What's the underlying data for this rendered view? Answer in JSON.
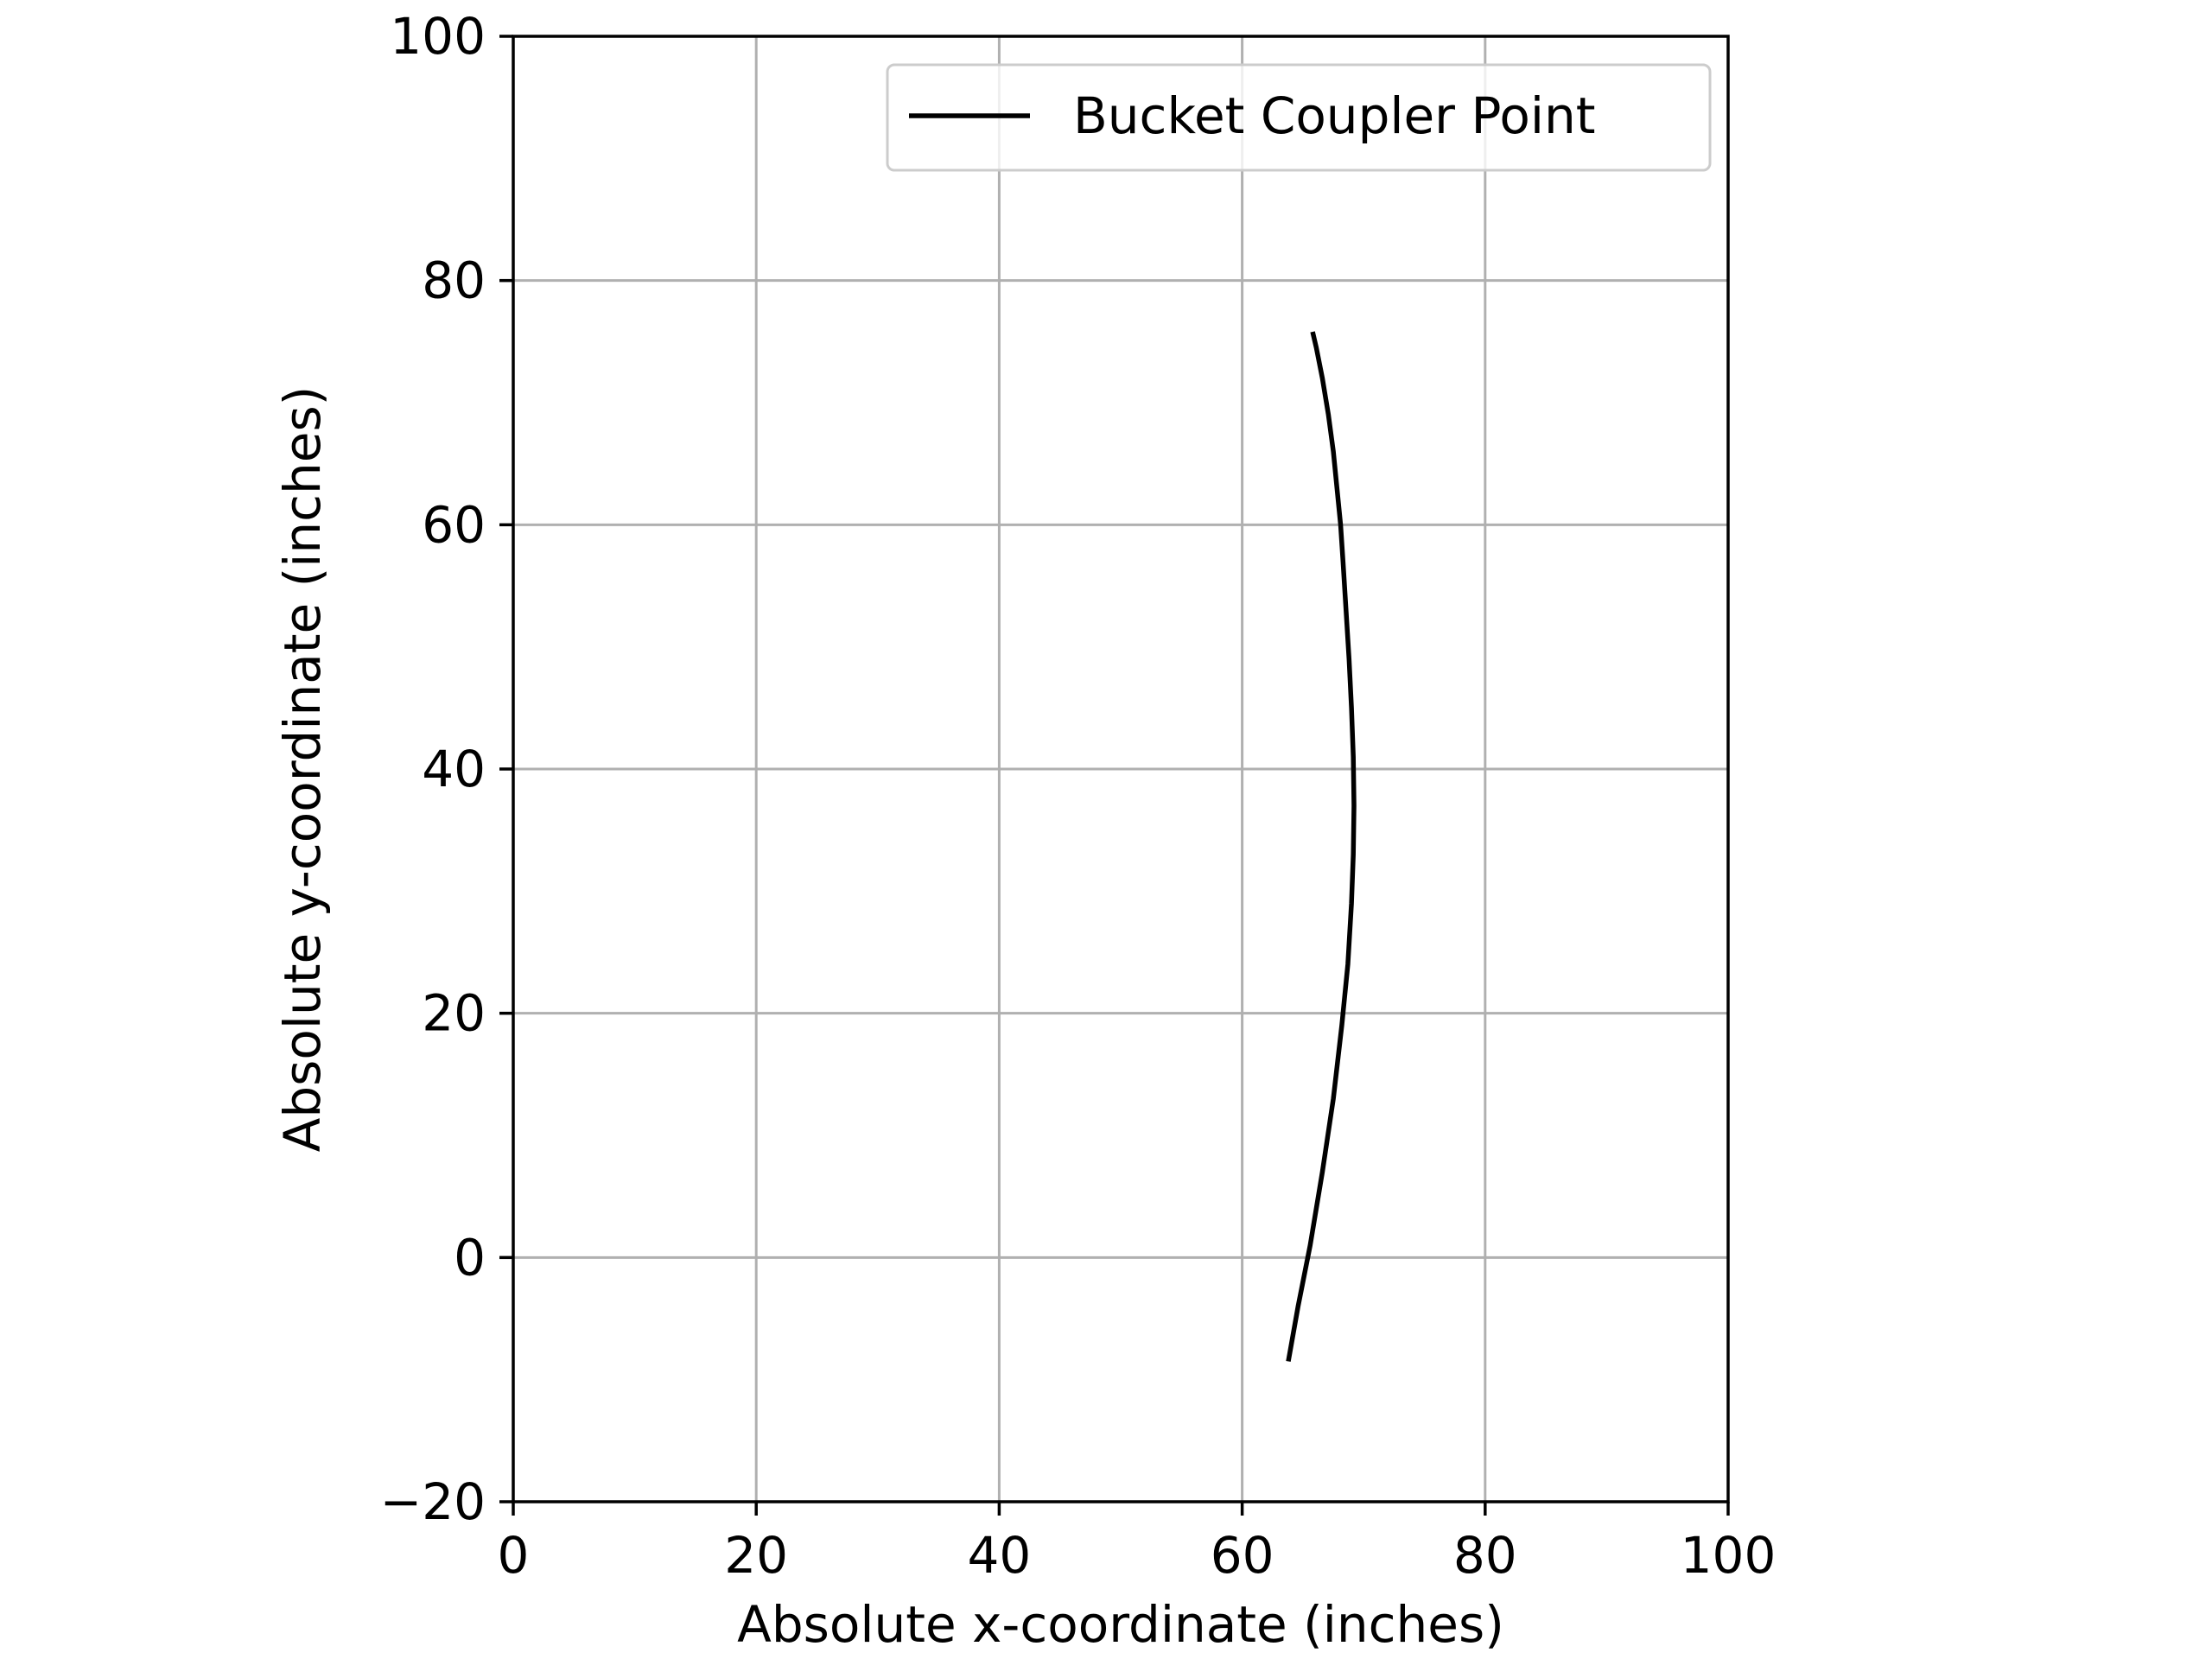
{
  "chart_data": {
    "type": "line",
    "title": "",
    "xlabel": "Absolute x-coordinate (inches)",
    "ylabel": "Absolute y-coordinate (inches)",
    "xlim": [
      0,
      100
    ],
    "ylim": [
      -20,
      100
    ],
    "xticks": [
      0,
      20,
      40,
      60,
      80,
      100
    ],
    "yticks": [
      -20,
      0,
      20,
      40,
      60,
      80,
      100
    ],
    "xtick_labels": [
      "0",
      "20",
      "40",
      "60",
      "80",
      "100"
    ],
    "ytick_labels": [
      "−20",
      "0",
      "20",
      "40",
      "60",
      "80",
      "100"
    ],
    "grid": true,
    "legend_position": "top-right",
    "series": [
      {
        "name": "Bucket Coupler Point",
        "color": "#000000",
        "x": [
          63.8,
          64.6,
          65.6,
          66.6,
          67.5,
          68.2,
          68.7,
          69.0,
          69.15,
          69.2,
          69.15,
          69.0,
          68.8,
          68.55,
          68.3,
          68.1,
          67.8,
          67.5,
          67.1,
          66.6,
          66.1,
          65.8
        ],
        "y": [
          -8.5,
          -4.0,
          1.0,
          7.0,
          13.0,
          19.0,
          24.0,
          29.0,
          33.0,
          37.0,
          41.0,
          45.0,
          49.0,
          53.0,
          57.0,
          60.0,
          63.0,
          66.0,
          69.0,
          72.0,
          74.5,
          75.8
        ]
      }
    ]
  },
  "colors": {
    "grid": "#b0b0b0",
    "axes": "#000000",
    "legend_border": "#cccccc"
  }
}
